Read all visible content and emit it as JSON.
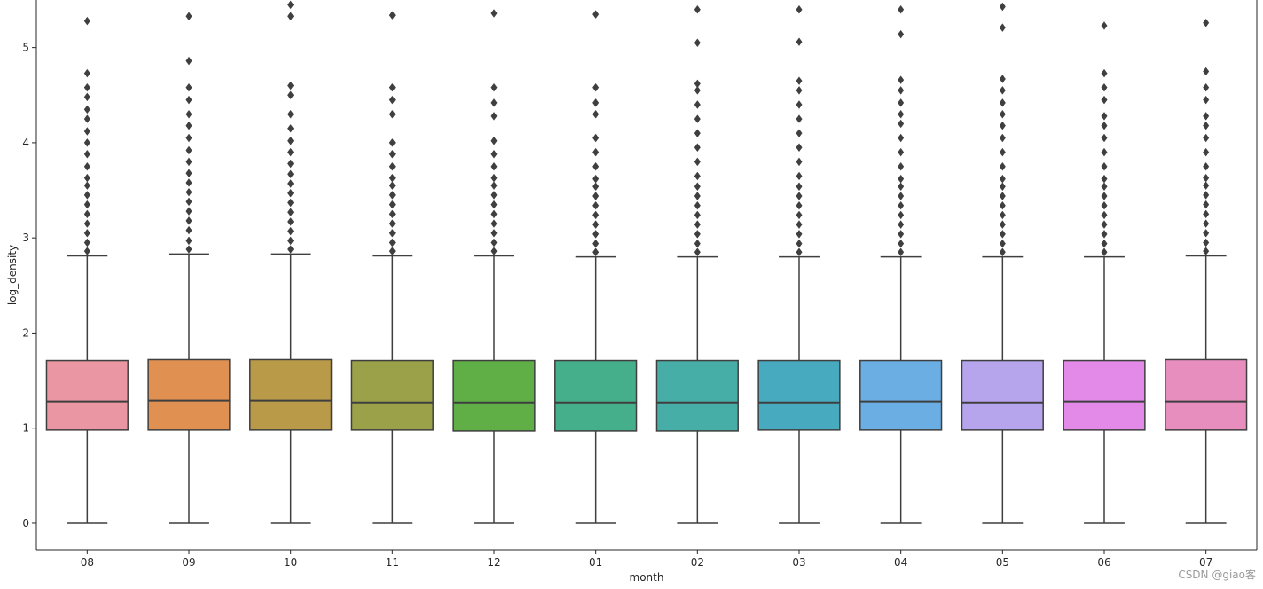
{
  "chart_data": {
    "type": "box",
    "title": "",
    "xlabel": "month",
    "ylabel": "log_density",
    "ylim": [
      -0.28,
      5.5
    ],
    "yticks": [
      0,
      1,
      2,
      3,
      4,
      5
    ],
    "ytick_labels": [
      "0",
      "1",
      "2",
      "3",
      "4",
      "5"
    ],
    "categories": [
      "08",
      "09",
      "10",
      "11",
      "12",
      "01",
      "02",
      "03",
      "04",
      "05",
      "06",
      "07"
    ],
    "colors": [
      "#ea96a3",
      "#e09050",
      "#b99a48",
      "#9aa148",
      "#5fae46",
      "#45ae8a",
      "#47ada7",
      "#48aabe",
      "#6aaee4",
      "#b6a4ec",
      "#e38ae9",
      "#e88ebf"
    ],
    "boxes": [
      {
        "q1": 0.98,
        "median": 1.28,
        "q3": 1.71,
        "whisker_low": 0.0,
        "whisker_high": 2.81,
        "outliers": [
          2.86,
          2.95,
          3.05,
          3.15,
          3.25,
          3.35,
          3.45,
          3.55,
          3.63,
          3.75,
          3.88,
          4.0,
          4.12,
          4.25,
          4.35,
          4.48,
          4.58,
          4.73,
          5.28
        ]
      },
      {
        "q1": 0.98,
        "median": 1.29,
        "q3": 1.72,
        "whisker_low": 0.0,
        "whisker_high": 2.83,
        "outliers": [
          2.88,
          2.97,
          3.08,
          3.18,
          3.28,
          3.38,
          3.48,
          3.58,
          3.68,
          3.8,
          3.92,
          4.05,
          4.18,
          4.3,
          4.45,
          4.58,
          4.86,
          5.33
        ]
      },
      {
        "q1": 0.98,
        "median": 1.29,
        "q3": 1.72,
        "whisker_low": 0.0,
        "whisker_high": 2.83,
        "outliers": [
          2.88,
          2.97,
          3.07,
          3.17,
          3.27,
          3.37,
          3.47,
          3.57,
          3.67,
          3.78,
          3.9,
          4.02,
          4.15,
          4.3,
          4.5,
          4.6,
          5.33,
          5.45
        ]
      },
      {
        "q1": 0.98,
        "median": 1.27,
        "q3": 1.71,
        "whisker_low": 0.0,
        "whisker_high": 2.81,
        "outliers": [
          2.86,
          2.95,
          3.05,
          3.15,
          3.25,
          3.35,
          3.45,
          3.55,
          3.63,
          3.75,
          3.88,
          4.0,
          4.3,
          4.45,
          4.58,
          5.34
        ]
      },
      {
        "q1": 0.97,
        "median": 1.27,
        "q3": 1.71,
        "whisker_low": 0.0,
        "whisker_high": 2.81,
        "outliers": [
          2.86,
          2.95,
          3.05,
          3.15,
          3.25,
          3.35,
          3.45,
          3.55,
          3.63,
          3.75,
          3.88,
          4.02,
          4.28,
          4.42,
          4.58,
          5.36
        ]
      },
      {
        "q1": 0.97,
        "median": 1.27,
        "q3": 1.71,
        "whisker_low": 0.0,
        "whisker_high": 2.8,
        "outliers": [
          2.85,
          2.94,
          3.04,
          3.14,
          3.24,
          3.34,
          3.44,
          3.54,
          3.62,
          3.75,
          3.9,
          4.05,
          4.3,
          4.42,
          4.58,
          5.35
        ]
      },
      {
        "q1": 0.97,
        "median": 1.27,
        "q3": 1.71,
        "whisker_low": 0.0,
        "whisker_high": 2.8,
        "outliers": [
          2.85,
          2.94,
          3.04,
          3.14,
          3.24,
          3.34,
          3.44,
          3.54,
          3.65,
          3.8,
          3.95,
          4.1,
          4.25,
          4.4,
          4.55,
          4.62,
          5.05,
          5.4
        ]
      },
      {
        "q1": 0.98,
        "median": 1.27,
        "q3": 1.71,
        "whisker_low": 0.0,
        "whisker_high": 2.8,
        "outliers": [
          2.85,
          2.94,
          3.04,
          3.14,
          3.24,
          3.34,
          3.44,
          3.54,
          3.65,
          3.8,
          3.95,
          4.1,
          4.25,
          4.4,
          4.55,
          4.65,
          5.06,
          5.4
        ]
      },
      {
        "q1": 0.98,
        "median": 1.28,
        "q3": 1.71,
        "whisker_low": 0.0,
        "whisker_high": 2.8,
        "outliers": [
          2.85,
          2.94,
          3.04,
          3.14,
          3.24,
          3.34,
          3.44,
          3.54,
          3.62,
          3.75,
          3.9,
          4.05,
          4.2,
          4.3,
          4.42,
          4.55,
          4.66,
          5.14,
          5.4
        ]
      },
      {
        "q1": 0.98,
        "median": 1.27,
        "q3": 1.71,
        "whisker_low": 0.0,
        "whisker_high": 2.8,
        "outliers": [
          2.85,
          2.94,
          3.04,
          3.14,
          3.24,
          3.34,
          3.44,
          3.54,
          3.62,
          3.75,
          3.9,
          4.05,
          4.18,
          4.3,
          4.42,
          4.55,
          4.67,
          5.21,
          5.43
        ]
      },
      {
        "q1": 0.98,
        "median": 1.28,
        "q3": 1.71,
        "whisker_low": 0.0,
        "whisker_high": 2.8,
        "outliers": [
          2.85,
          2.94,
          3.04,
          3.14,
          3.24,
          3.34,
          3.44,
          3.54,
          3.62,
          3.75,
          3.9,
          4.05,
          4.18,
          4.28,
          4.45,
          4.58,
          4.73,
          5.23
        ]
      },
      {
        "q1": 0.98,
        "median": 1.28,
        "q3": 1.72,
        "whisker_low": 0.0,
        "whisker_high": 2.81,
        "outliers": [
          2.86,
          2.95,
          3.05,
          3.15,
          3.25,
          3.35,
          3.45,
          3.55,
          3.63,
          3.75,
          3.9,
          4.05,
          4.18,
          4.28,
          4.45,
          4.58,
          4.75,
          5.26
        ]
      }
    ]
  },
  "watermark": "CSDN @giao客"
}
